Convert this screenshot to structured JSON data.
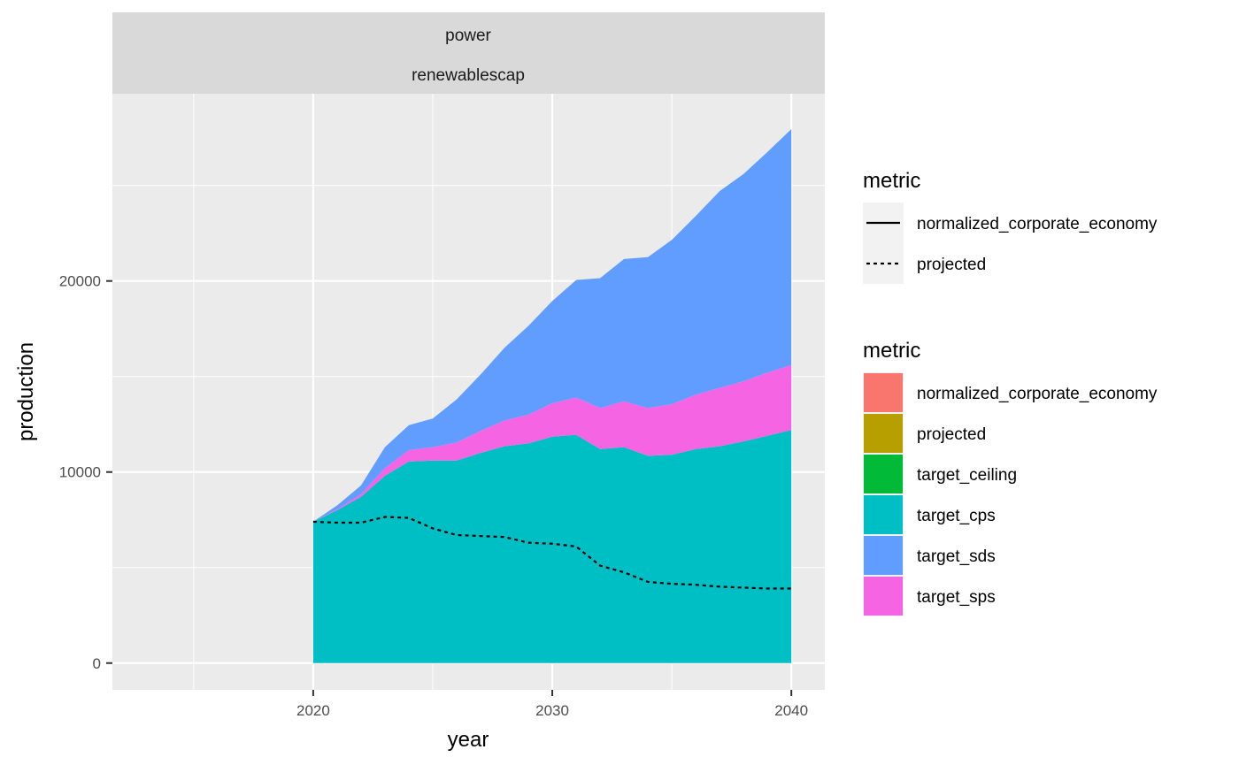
{
  "chart_data": {
    "type": "area",
    "facet_strip": [
      "power",
      "renewablescap"
    ],
    "xlabel": "year",
    "ylabel": "production",
    "xlim": [
      2011.6,
      2041.4
    ],
    "ylim": [
      -1400,
      29800
    ],
    "x_ticks": [
      2020,
      2030,
      2040
    ],
    "y_ticks": [
      0,
      10000,
      20000
    ],
    "x": [
      2020,
      2021,
      2022,
      2023,
      2024,
      2025,
      2026,
      2027,
      2028,
      2029,
      2030,
      2031,
      2032,
      2033,
      2034,
      2035,
      2036,
      2037,
      2038,
      2039,
      2040
    ],
    "stack_order": [
      "target_cps",
      "target_sps",
      "target_sds"
    ],
    "series": [
      {
        "name": "target_cps",
        "color": "#00BFC4",
        "values": [
          7400,
          8000,
          8700,
          9800,
          10550,
          10600,
          10600,
          11000,
          11350,
          11500,
          11850,
          11950,
          11200,
          11300,
          10850,
          10900,
          11200,
          11350,
          11600,
          11900,
          12200
        ]
      },
      {
        "name": "target_sps",
        "color": "#F564E3",
        "values": [
          0,
          50,
          150,
          400,
          600,
          700,
          950,
          1150,
          1350,
          1500,
          1750,
          1950,
          2150,
          2400,
          2500,
          2650,
          2850,
          3050,
          3150,
          3300,
          3400
        ]
      },
      {
        "name": "target_sds",
        "color": "#619CFF",
        "values": [
          0,
          200,
          450,
          1100,
          1300,
          1500,
          2250,
          2950,
          3800,
          4650,
          5350,
          6150,
          6800,
          7450,
          7900,
          8600,
          9350,
          10300,
          10850,
          11550,
          12350
        ]
      }
    ],
    "lines": [
      {
        "name": "projected",
        "style": "dashed",
        "color": "#000000",
        "values": [
          7400,
          7350,
          7350,
          7650,
          7600,
          7050,
          6700,
          6650,
          6600,
          6300,
          6250,
          6100,
          5100,
          4750,
          4250,
          4150,
          4100,
          4000,
          3950,
          3900,
          3900
        ]
      }
    ],
    "grid": true,
    "legend_position": "right",
    "legends": [
      {
        "title": "metric",
        "kind": "line",
        "items": [
          {
            "label": "normalized_corporate_economy",
            "style": "solid"
          },
          {
            "label": "projected",
            "style": "dashed"
          }
        ]
      },
      {
        "title": "metric",
        "kind": "fill",
        "items": [
          {
            "label": "normalized_corporate_economy",
            "color": "#F8766D"
          },
          {
            "label": "projected",
            "color": "#B79F00"
          },
          {
            "label": "target_ceiling",
            "color": "#00BA38"
          },
          {
            "label": "target_cps",
            "color": "#00BFC4"
          },
          {
            "label": "target_sds",
            "color": "#619CFF"
          },
          {
            "label": "target_sps",
            "color": "#F564E3"
          }
        ]
      }
    ]
  }
}
